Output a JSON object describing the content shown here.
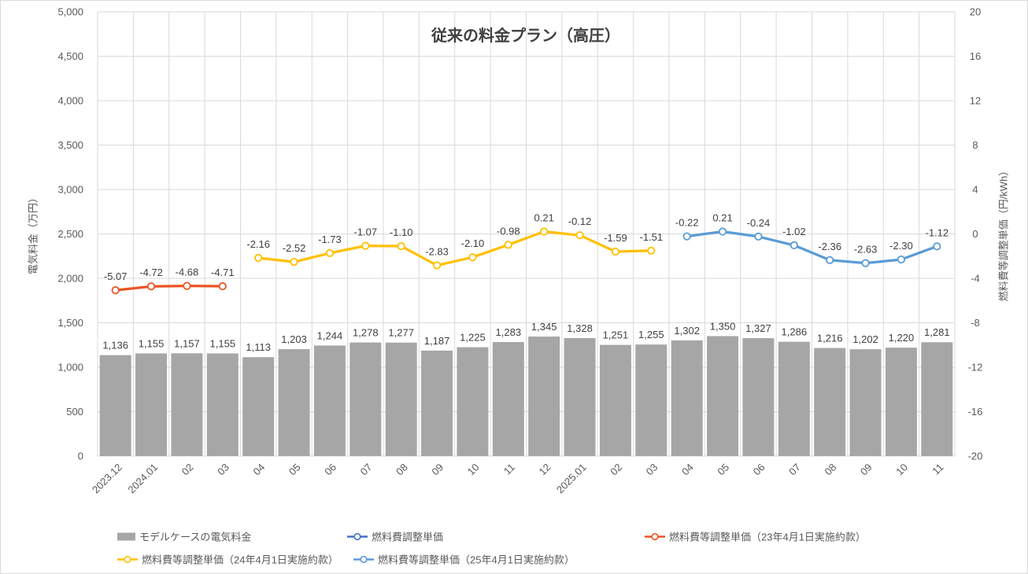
{
  "title": "従来の料金プラン（高圧）",
  "left_axis": {
    "title": "電気料金（万円）",
    "ticks": [
      "5,000",
      "4,500",
      "4,000",
      "3,500",
      "3,000",
      "2,500",
      "2,000",
      "1,500",
      "1,000",
      "500",
      "0"
    ]
  },
  "right_axis": {
    "title": "燃料費等調整単価（円/kWh）",
    "ticks": [
      "20",
      "16",
      "12",
      "8",
      "4",
      "0",
      "-4",
      "-8",
      "-12",
      "-16",
      "-20"
    ]
  },
  "chart_data": {
    "type": "bar+line combo",
    "categories": [
      "2023.12",
      "2024.01",
      "02",
      "03",
      "04",
      "05",
      "06",
      "07",
      "08",
      "09",
      "10",
      "11",
      "12",
      "2025.01",
      "02",
      "03",
      "04",
      "05",
      "06",
      "07",
      "08",
      "09",
      "10",
      "11"
    ],
    "ylim_left": [
      0,
      5000
    ],
    "ylim_right": [
      -20,
      20
    ],
    "grid": true,
    "legend_position": "bottom",
    "series": [
      {
        "name": "モデルケースの電気料金",
        "type": "bar",
        "axis": "left",
        "color": "#A6A6A6",
        "start_index": 0,
        "values": [
          1136,
          1155,
          1157,
          1155,
          1113,
          1203,
          1244,
          1278,
          1277,
          1187,
          1225,
          1283,
          1345,
          1328,
          1251,
          1255,
          1302,
          1350,
          1327,
          1286,
          1216,
          1202,
          1220,
          1281
        ]
      },
      {
        "name": "燃料費調整単価",
        "type": "line",
        "axis": "right",
        "color": "#4472C4",
        "start_index": 0,
        "values": []
      },
      {
        "name": "燃料費等調整単価（23年4月1日実施約款）",
        "type": "line",
        "axis": "right",
        "color": "#EB5426",
        "start_index": 0,
        "values": [
          -5.07,
          -4.72,
          -4.68,
          -4.71
        ]
      },
      {
        "name": "燃料費等調整単価（24年4月1日実施約款）",
        "type": "line",
        "axis": "right",
        "color": "#FFC000",
        "start_index": 4,
        "values": [
          -2.16,
          -2.52,
          -1.73,
          -1.07,
          -1.1,
          -2.83,
          -2.1,
          -0.98,
          0.21,
          -0.12,
          -1.59,
          -1.51
        ]
      },
      {
        "name": "燃料費等調整単価（25年4月1日実施約款）",
        "type": "line",
        "axis": "right",
        "color": "#5B9BD5",
        "start_index": 16,
        "values": [
          -0.22,
          0.21,
          -0.24,
          -1.02,
          -2.36,
          -2.63,
          -2.3,
          -1.12
        ]
      }
    ]
  },
  "legend": {
    "items": [
      {
        "label": "モデルケースの電気料金",
        "swatch": "bar",
        "color": "#A6A6A6"
      },
      {
        "label": "燃料費調整単価",
        "swatch": "line",
        "color": "#4472C4"
      },
      {
        "label": "燃料費等調整単価（23年4月1日実施約款）",
        "swatch": "line",
        "color": "#EB5426"
      },
      {
        "label": "燃料費等調整単価（24年4月1日実施約款）",
        "swatch": "line",
        "color": "#FFC000"
      },
      {
        "label": "燃料費等調整単価（25年4月1日実施約款）",
        "swatch": "line",
        "color": "#5B9BD5"
      }
    ]
  },
  "colors": {
    "gridline": "#D9D9D9",
    "bar": "#A6A6A6",
    "data_label": "#404040",
    "axis_text": "#595959",
    "title_text": "#404040"
  }
}
